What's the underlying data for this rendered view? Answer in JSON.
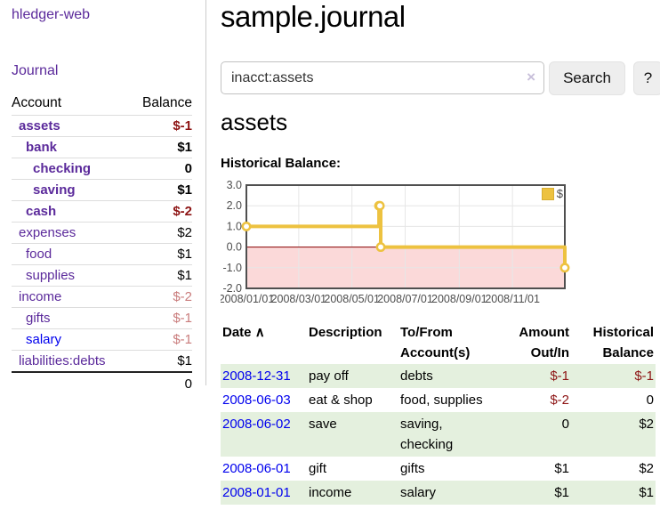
{
  "sidebar": {
    "brand": "hledger-web",
    "journal_link": "Journal",
    "accounts_table": {
      "headers": {
        "account": "Account",
        "balance": "Balance"
      },
      "rows": [
        {
          "name": "assets",
          "indent": 1,
          "bold": true,
          "balance": "$-1",
          "balance_style": "neg"
        },
        {
          "name": "bank",
          "indent": 2,
          "bold": true,
          "balance": "$1",
          "balance_style": "pos"
        },
        {
          "name": "checking",
          "indent": 3,
          "bold": true,
          "balance": "0",
          "balance_style": "pos"
        },
        {
          "name": "saving",
          "indent": 3,
          "bold": true,
          "balance": "$1",
          "balance_style": "pos"
        },
        {
          "name": "cash",
          "indent": 2,
          "bold": true,
          "balance": "$-2",
          "balance_style": "neg"
        },
        {
          "name": "expenses",
          "indent": 1,
          "bold": false,
          "balance": "$2",
          "balance_style": "pos"
        },
        {
          "name": "food",
          "indent": 2,
          "bold": false,
          "balance": "$1",
          "balance_style": "pos"
        },
        {
          "name": "supplies",
          "indent": 2,
          "bold": false,
          "balance": "$1",
          "balance_style": "pos"
        },
        {
          "name": "income",
          "indent": 1,
          "bold": false,
          "balance": "$-2",
          "balance_style": "neg-muted"
        },
        {
          "name": "gifts",
          "indent": 2,
          "bold": false,
          "balance": "$-1",
          "balance_style": "neg-muted"
        },
        {
          "name": "salary",
          "indent": 2,
          "bold": false,
          "balance": "$-1",
          "balance_style": "neg-muted",
          "link_style": "blue"
        },
        {
          "name": "liabilities:debts",
          "indent": 1,
          "bold": false,
          "balance": "$1",
          "balance_style": "pos"
        }
      ],
      "total": "0"
    }
  },
  "header": {
    "title": "sample.journal"
  },
  "search": {
    "value": "inacct:assets",
    "clear_icon": "×",
    "button_label": "Search",
    "help_label": "?"
  },
  "account_page": {
    "heading": "assets",
    "chart_label": "Historical Balance:"
  },
  "chart_data": {
    "type": "line",
    "step": true,
    "title": "Historical Balance",
    "series": [
      {
        "name": "$",
        "color": "#EDC240",
        "points": [
          [
            "2008-01-01",
            1
          ],
          [
            "2008-06-01",
            2
          ],
          [
            "2008-06-02",
            2
          ],
          [
            "2008-06-03",
            0
          ],
          [
            "2008-12-31",
            -1
          ]
        ]
      }
    ],
    "x_ticks": [
      "2008/01/01",
      "2008/03/01",
      "2008/05/01",
      "2008/07/01",
      "2008/09/01",
      "2008/11/01"
    ],
    "y_ticks": [
      3.0,
      2.0,
      1.0,
      0.0,
      -1.0,
      -2.0
    ],
    "xlim": [
      "2008-01-01",
      "2008-12-31"
    ],
    "ylim": [
      -2,
      3
    ],
    "grid": true,
    "legend_position": "top-right",
    "legend_label": "$",
    "negative_region_color": "#FBD9D9",
    "zero_line_color": "#8B0000",
    "grid_color": "#E6E6E6",
    "border_color": "#4F4F4F",
    "axis_label_color": "#4D4D4D"
  },
  "register_table": {
    "headers": {
      "date": "Date",
      "sort_arrow": "∧",
      "description": "Description",
      "accounts": "To/From Account(s)",
      "amount": "Amount Out/In",
      "balance": "Historical Balance"
    },
    "rows": [
      {
        "date": "2008-12-31",
        "description": "pay off",
        "accounts": "debts",
        "amount": "$-1",
        "amount_neg": true,
        "balance": "$-1",
        "balance_neg": true,
        "shaded": true
      },
      {
        "date": "2008-06-03",
        "description": "eat & shop",
        "accounts": "food, supplies",
        "amount": "$-2",
        "amount_neg": true,
        "balance": "0",
        "balance_neg": false,
        "shaded": false
      },
      {
        "date": "2008-06-02",
        "description": "save",
        "accounts": "saving, checking",
        "amount": "0",
        "amount_neg": false,
        "balance": "$2",
        "balance_neg": false,
        "shaded": true
      },
      {
        "date": "2008-06-01",
        "description": "gift",
        "accounts": "gifts",
        "amount": "$1",
        "amount_neg": false,
        "balance": "$2",
        "balance_neg": false,
        "shaded": false
      },
      {
        "date": "2008-01-01",
        "description": "income",
        "accounts": "salary",
        "amount": "$1",
        "amount_neg": false,
        "balance": "$1",
        "balance_neg": false,
        "shaded": true
      }
    ]
  }
}
